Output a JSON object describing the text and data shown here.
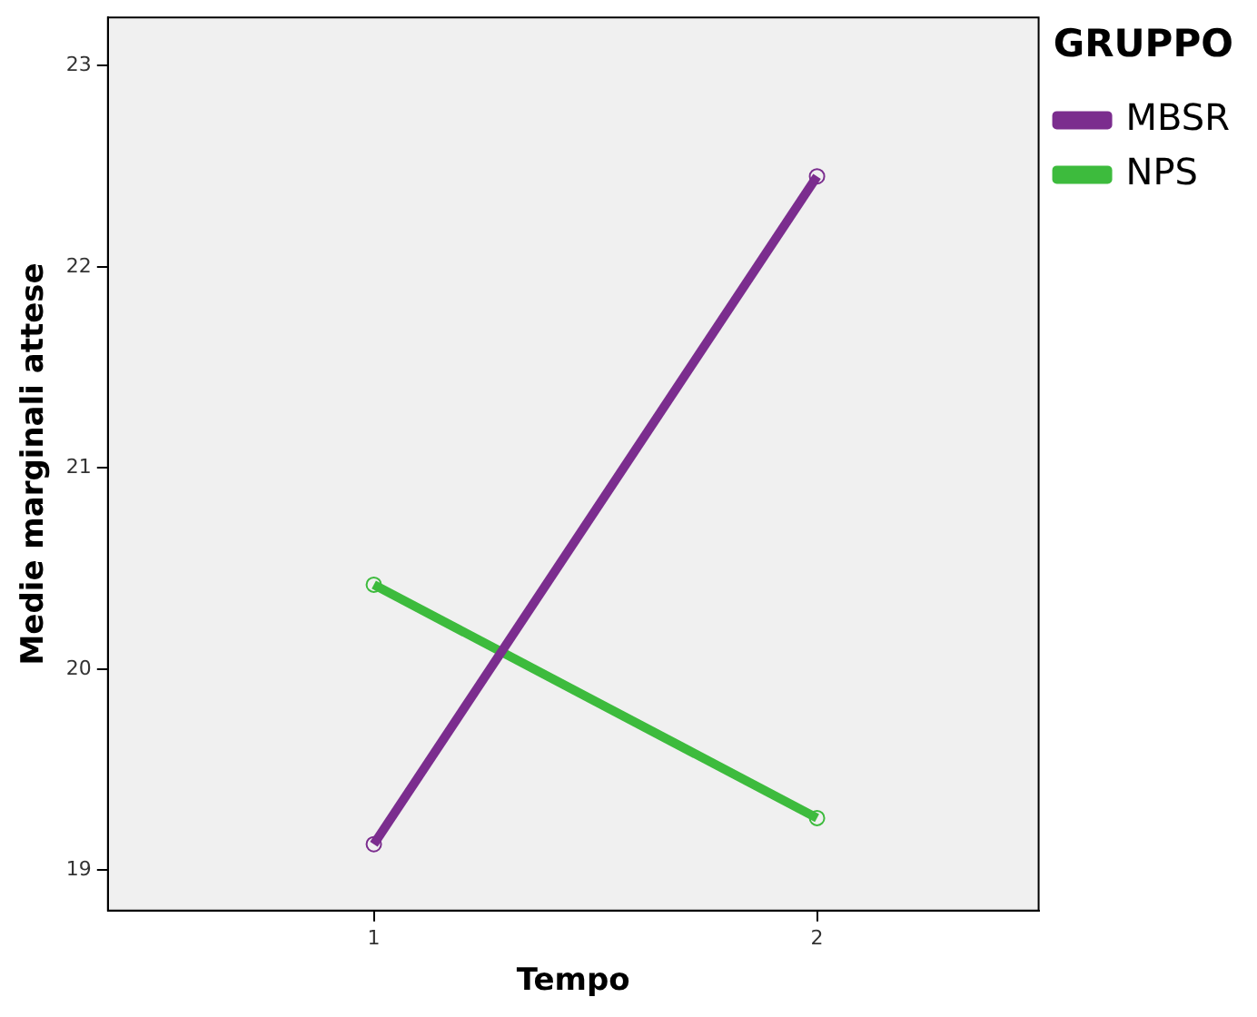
{
  "chart_data": {
    "type": "line",
    "xlabel": "Tempo",
    "ylabel": "Medie marginali attese",
    "legend_title": "GRUPPO",
    "x": [
      1,
      2
    ],
    "series": [
      {
        "name": "MBSR",
        "color": "#7b2d8e",
        "values": [
          19.13,
          22.45
        ]
      },
      {
        "name": "NPS",
        "color": "#3dbb3d",
        "values": [
          20.42,
          19.26
        ]
      }
    ],
    "xlim": [
      0.4,
      2.5
    ],
    "xticks": [
      1,
      2
    ],
    "ylim": [
      18.8,
      23.24
    ],
    "yticks": [
      19,
      20,
      21,
      22,
      23
    ],
    "grid": false,
    "legend": "top right",
    "marker": "circle",
    "line_style": "solid"
  }
}
